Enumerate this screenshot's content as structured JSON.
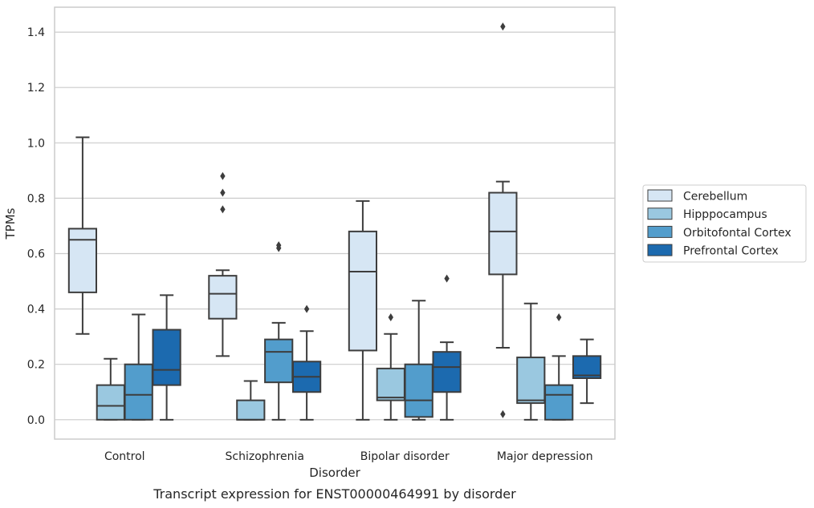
{
  "chart_data": {
    "type": "box",
    "xlabel": "Disorder",
    "ylabel": "TPMs",
    "caption": "Transcript expression for ENST00000464991 by disorder",
    "ylim": [
      -0.07,
      1.49
    ],
    "yticks": [
      "0.0",
      "0.2",
      "0.4",
      "0.6",
      "0.8",
      "1.0",
      "1.2",
      "1.4"
    ],
    "ytick_values": [
      0.0,
      0.2,
      0.4,
      0.6,
      0.8,
      1.0,
      1.2,
      1.4
    ],
    "grid": true,
    "legend_position": "right",
    "categories": [
      "Control",
      "Schizophrenia",
      "Bipolar disorder",
      "Major depression"
    ],
    "series": [
      {
        "name": "Cerebellum",
        "color": "#d6e6f4",
        "boxes": [
          {
            "whisker_low": 0.31,
            "q1": 0.46,
            "median": 0.65,
            "q3": 0.69,
            "whisker_high": 1.02,
            "outliers": []
          },
          {
            "whisker_low": 0.23,
            "q1": 0.365,
            "median": 0.455,
            "q3": 0.52,
            "whisker_high": 0.54,
            "outliers": [
              0.88,
              0.82,
              0.76
            ]
          },
          {
            "whisker_low": 0.0,
            "q1": 0.25,
            "median": 0.535,
            "q3": 0.68,
            "whisker_high": 0.79,
            "outliers": []
          },
          {
            "whisker_low": 0.26,
            "q1": 0.525,
            "median": 0.68,
            "q3": 0.82,
            "whisker_high": 0.86,
            "outliers": [
              0.02,
              1.42
            ]
          }
        ]
      },
      {
        "name": "Hipppocampus",
        "color": "#9ac8e0",
        "boxes": [
          {
            "whisker_low": 0.0,
            "q1": 0.0,
            "median": 0.05,
            "q3": 0.125,
            "whisker_high": 0.22,
            "outliers": []
          },
          {
            "whisker_low": 0.0,
            "q1": 0.0,
            "median": 0.0,
            "q3": 0.07,
            "whisker_high": 0.14,
            "outliers": []
          },
          {
            "whisker_low": 0.0,
            "q1": 0.07,
            "median": 0.08,
            "q3": 0.185,
            "whisker_high": 0.31,
            "outliers": [
              0.37
            ]
          },
          {
            "whisker_low": 0.0,
            "q1": 0.06,
            "median": 0.07,
            "q3": 0.225,
            "whisker_high": 0.42,
            "outliers": []
          }
        ]
      },
      {
        "name": "Orbitofontal Cortex",
        "color": "#529dcc",
        "boxes": [
          {
            "whisker_low": 0.0,
            "q1": 0.0,
            "median": 0.09,
            "q3": 0.2,
            "whisker_high": 0.38,
            "outliers": []
          },
          {
            "whisker_low": 0.0,
            "q1": 0.135,
            "median": 0.245,
            "q3": 0.29,
            "whisker_high": 0.35,
            "outliers": [
              0.63,
              0.62
            ]
          },
          {
            "whisker_low": 0.0,
            "q1": 0.01,
            "median": 0.07,
            "q3": 0.2,
            "whisker_high": 0.43,
            "outliers": []
          },
          {
            "whisker_low": 0.0,
            "q1": 0.0,
            "median": 0.09,
            "q3": 0.125,
            "whisker_high": 0.23,
            "outliers": [
              0.37
            ]
          }
        ]
      },
      {
        "name": "Prefrontal Cortex",
        "color": "#1c6aaf",
        "boxes": [
          {
            "whisker_low": 0.0,
            "q1": 0.125,
            "median": 0.18,
            "q3": 0.325,
            "whisker_high": 0.45,
            "outliers": []
          },
          {
            "whisker_low": 0.0,
            "q1": 0.1,
            "median": 0.155,
            "q3": 0.21,
            "whisker_high": 0.32,
            "outliers": [
              0.4
            ]
          },
          {
            "whisker_low": 0.0,
            "q1": 0.1,
            "median": 0.19,
            "q3": 0.245,
            "whisker_high": 0.28,
            "outliers": [
              0.51
            ]
          },
          {
            "whisker_low": 0.06,
            "q1": 0.15,
            "median": 0.16,
            "q3": 0.23,
            "whisker_high": 0.29,
            "outliers": []
          }
        ]
      }
    ]
  }
}
